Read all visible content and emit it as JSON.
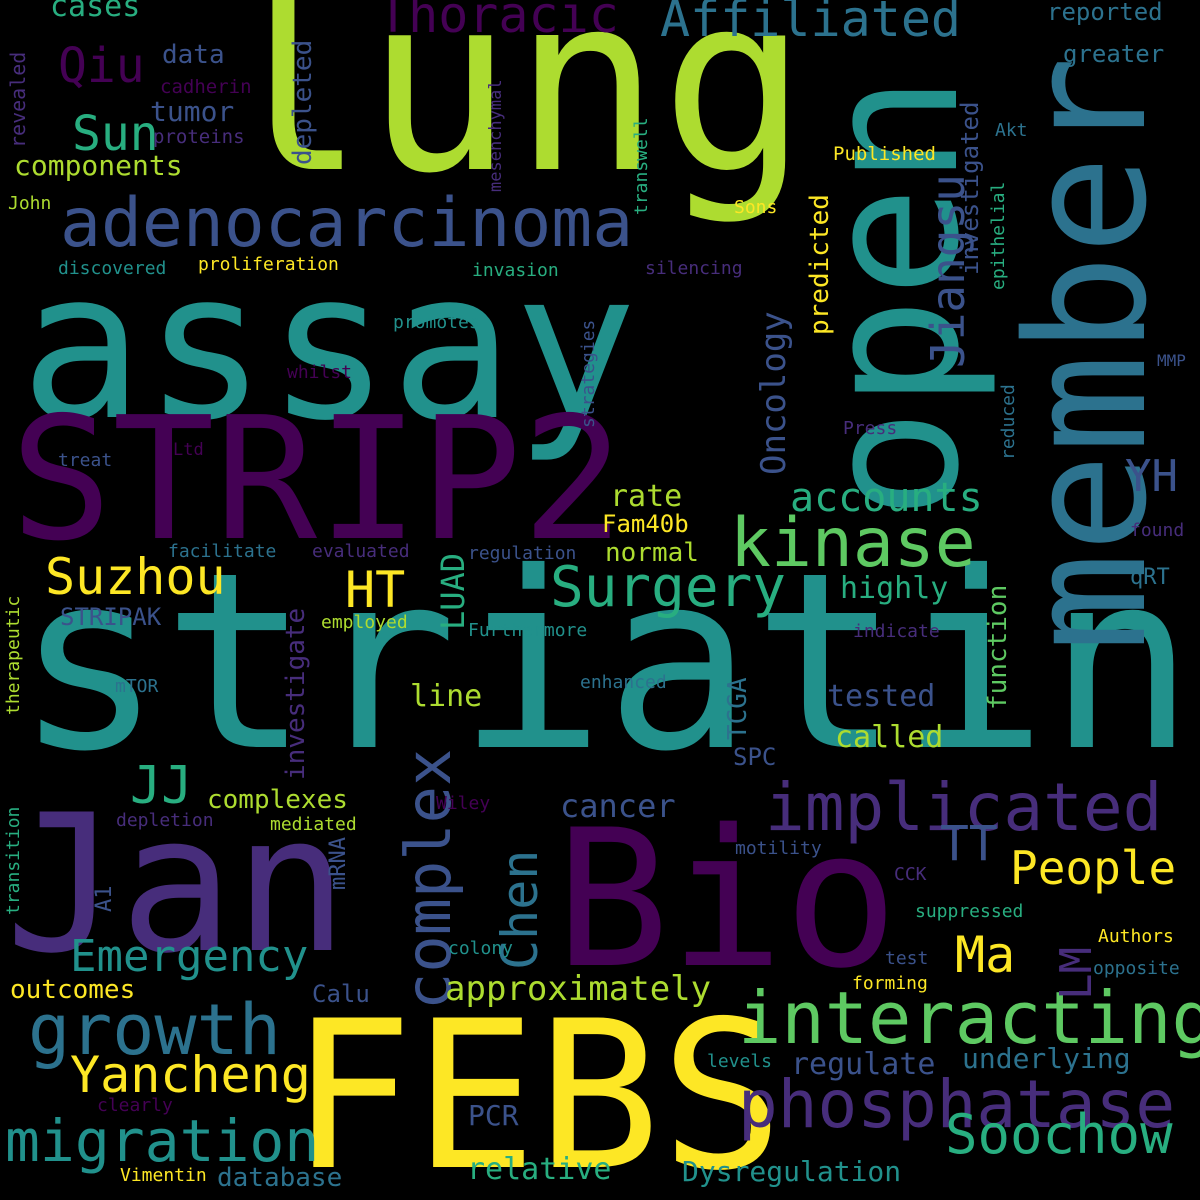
{
  "palette": {
    "dark_purple": "#440154",
    "purple": "#472d7b",
    "indigo": "#3b528b",
    "steel_blue": "#2c728e",
    "teal": "#21918c",
    "green_teal": "#28ae80",
    "green": "#5ec962",
    "light_green": "#addc30",
    "yellow": "#fde725"
  },
  "words": [
    {
      "id": "lung",
      "text": "lung"
    },
    {
      "id": "assay",
      "text": "assay"
    },
    {
      "id": "striatin",
      "text": "striatin"
    },
    {
      "id": "STRIP2",
      "text": "STRIP2"
    },
    {
      "id": "Jan",
      "text": "Jan"
    },
    {
      "id": "Bio",
      "text": "Bio"
    },
    {
      "id": "FEBS",
      "text": "FEBS"
    },
    {
      "id": "open",
      "text": "open"
    },
    {
      "id": "member",
      "text": "member"
    },
    {
      "id": "adenocarcinoma",
      "text": "adenocarcinoma"
    },
    {
      "id": "interacting",
      "text": "interacting"
    },
    {
      "id": "phosphatase",
      "text": "phosphatase"
    },
    {
      "id": "implicated",
      "text": "implicated"
    },
    {
      "id": "kinase",
      "text": "kinase"
    },
    {
      "id": "complex",
      "text": "complex"
    },
    {
      "id": "Surgery",
      "text": "Surgery"
    },
    {
      "id": "Suzhou",
      "text": "Suzhou"
    },
    {
      "id": "growth",
      "text": "growth"
    },
    {
      "id": "migration",
      "text": "migration"
    },
    {
      "id": "Yancheng",
      "text": "Yancheng"
    },
    {
      "id": "Soochow",
      "text": "Soochow"
    },
    {
      "id": "Emergency",
      "text": "Emergency"
    },
    {
      "id": "Affiliated",
      "text": "Affiliated"
    },
    {
      "id": "Thoracic",
      "text": "Thoracic"
    },
    {
      "id": "Sun",
      "text": "Sun"
    },
    {
      "id": "Qiu",
      "text": "Qiu"
    },
    {
      "id": "Jiangsu",
      "text": "Jiangsu"
    },
    {
      "id": "YH",
      "text": "YH"
    },
    {
      "id": "HT",
      "text": "HT"
    },
    {
      "id": "TT",
      "text": "TT"
    },
    {
      "id": "JJ",
      "text": "JJ"
    },
    {
      "id": "Ma",
      "text": "Ma"
    },
    {
      "id": "LM",
      "text": "LM"
    },
    {
      "id": "People",
      "text": "People"
    },
    {
      "id": "Chen",
      "text": "Chen"
    },
    {
      "id": "accounts",
      "text": "accounts"
    },
    {
      "id": "approximately",
      "text": "approximately"
    },
    {
      "id": "Oncology",
      "text": "Oncology"
    },
    {
      "id": "LUAD",
      "text": "LUAD"
    },
    {
      "id": "cases",
      "text": "cases"
    },
    {
      "id": "data",
      "text": "data"
    },
    {
      "id": "tumor",
      "text": "tumor"
    },
    {
      "id": "components",
      "text": "components"
    },
    {
      "id": "depleted",
      "text": "depleted"
    },
    {
      "id": "reported",
      "text": "reported"
    },
    {
      "id": "greater",
      "text": "greater"
    },
    {
      "id": "investigated",
      "text": "investigated"
    },
    {
      "id": "predicted",
      "text": "predicted"
    },
    {
      "id": "cadherin",
      "text": "cadherin"
    },
    {
      "id": "proteins",
      "text": "proteins"
    },
    {
      "id": "revealed",
      "text": "revealed"
    },
    {
      "id": "mesenchymal",
      "text": "mesenchymal"
    },
    {
      "id": "transwell",
      "text": "transwell"
    },
    {
      "id": "Published",
      "text": "Published"
    },
    {
      "id": "Akt",
      "text": "Akt"
    },
    {
      "id": "epithelial",
      "text": "epithelial"
    },
    {
      "id": "John",
      "text": "John"
    },
    {
      "id": "Sons",
      "text": "Sons"
    },
    {
      "id": "discovered",
      "text": "discovered"
    },
    {
      "id": "proliferation",
      "text": "proliferation"
    },
    {
      "id": "invasion",
      "text": "invasion"
    },
    {
      "id": "silencing",
      "text": "silencing"
    },
    {
      "id": "promotes",
      "text": "promotes"
    },
    {
      "id": "strategies",
      "text": "strategies"
    },
    {
      "id": "whilst",
      "text": "whilst"
    },
    {
      "id": "MMP",
      "text": "MMP"
    },
    {
      "id": "reduced",
      "text": "reduced"
    },
    {
      "id": "Press",
      "text": "Press"
    },
    {
      "id": "treat",
      "text": "treat"
    },
    {
      "id": "Ltd",
      "text": "Ltd"
    },
    {
      "id": "rate",
      "text": "rate"
    },
    {
      "id": "Fam40b",
      "text": "Fam40b"
    },
    {
      "id": "normal",
      "text": "normal"
    },
    {
      "id": "facilitate",
      "text": "facilitate"
    },
    {
      "id": "evaluated",
      "text": "evaluated"
    },
    {
      "id": "regulation",
      "text": "regulation"
    },
    {
      "id": "found",
      "text": "found"
    },
    {
      "id": "STRIPAK",
      "text": "STRIPAK"
    },
    {
      "id": "investigate",
      "text": "investigate"
    },
    {
      "id": "highly",
      "text": "highly"
    },
    {
      "id": "qRT",
      "text": "qRT"
    },
    {
      "id": "employed",
      "text": "employed"
    },
    {
      "id": "Furthermore",
      "text": "Furthermore"
    },
    {
      "id": "indicate",
      "text": "indicate"
    },
    {
      "id": "function",
      "text": "function"
    },
    {
      "id": "therapeutic",
      "text": "therapeutic"
    },
    {
      "id": "mTOR",
      "text": "mTOR"
    },
    {
      "id": "enhanced",
      "text": "enhanced"
    },
    {
      "id": "line",
      "text": "line"
    },
    {
      "id": "TCGA",
      "text": "TCGA"
    },
    {
      "id": "tested",
      "text": "tested"
    },
    {
      "id": "called",
      "text": "called"
    },
    {
      "id": "SPC",
      "text": "SPC"
    },
    {
      "id": "complexes",
      "text": "complexes"
    },
    {
      "id": "cancer",
      "text": "cancer"
    },
    {
      "id": "Wiley",
      "text": "Wiley"
    },
    {
      "id": "depletion",
      "text": "depletion"
    },
    {
      "id": "mediated",
      "text": "mediated"
    },
    {
      "id": "transition",
      "text": "transition"
    },
    {
      "id": "mRNA",
      "text": "mRNA"
    },
    {
      "id": "motility",
      "text": "motility"
    },
    {
      "id": "A1",
      "text": "A1"
    },
    {
      "id": "CCK",
      "text": "CCK"
    },
    {
      "id": "suppressed",
      "text": "suppressed"
    },
    {
      "id": "colony",
      "text": "colony"
    },
    {
      "id": "test",
      "text": "test"
    },
    {
      "id": "Authors",
      "text": "Authors"
    },
    {
      "id": "opposite",
      "text": "opposite"
    },
    {
      "id": "forming",
      "text": "forming"
    },
    {
      "id": "Calu",
      "text": "Calu"
    },
    {
      "id": "outcomes",
      "text": "outcomes"
    },
    {
      "id": "regulate",
      "text": "regulate"
    },
    {
      "id": "underlying",
      "text": "underlying"
    },
    {
      "id": "levels",
      "text": "levels"
    },
    {
      "id": "clearly",
      "text": "clearly"
    },
    {
      "id": "PCR",
      "text": "PCR"
    },
    {
      "id": "relative",
      "text": "relative"
    },
    {
      "id": "Dysregulation",
      "text": "Dysregulation"
    },
    {
      "id": "Vimentin",
      "text": "Vimentin"
    },
    {
      "id": "database",
      "text": "database"
    }
  ]
}
